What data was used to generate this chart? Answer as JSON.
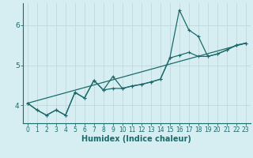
{
  "xlabel": "Humidex (Indice chaleur)",
  "bg_color": "#d6eef2",
  "grid_color": "#c0d8dc",
  "line_color": "#1a6b6b",
  "xlim": [
    -0.5,
    23.5
  ],
  "ylim": [
    3.55,
    6.55
  ],
  "yticks": [
    4,
    5,
    6
  ],
  "xticks": [
    0,
    1,
    2,
    3,
    4,
    5,
    6,
    7,
    8,
    9,
    10,
    11,
    12,
    13,
    14,
    15,
    16,
    17,
    18,
    19,
    20,
    21,
    22,
    23
  ],
  "line1_x": [
    0,
    1,
    2,
    3,
    4,
    5,
    6,
    7,
    8,
    9,
    10,
    11,
    12,
    13,
    14,
    15,
    16,
    17,
    18,
    19,
    20,
    21,
    22,
    23
  ],
  "line1_y": [
    4.05,
    3.88,
    3.75,
    3.88,
    3.75,
    4.32,
    4.18,
    4.62,
    4.38,
    4.72,
    4.42,
    4.48,
    4.52,
    4.58,
    4.65,
    5.18,
    6.38,
    5.88,
    5.72,
    5.22,
    5.28,
    5.38,
    5.5,
    5.55
  ],
  "line2_x": [
    0,
    1,
    2,
    3,
    4,
    5,
    6,
    7,
    8,
    9,
    10,
    11,
    12,
    13,
    14,
    15,
    16,
    17,
    18,
    19,
    20,
    21,
    22,
    23
  ],
  "line2_y": [
    4.05,
    3.88,
    3.75,
    3.88,
    3.75,
    4.32,
    4.18,
    4.62,
    4.38,
    4.42,
    4.42,
    4.48,
    4.52,
    4.58,
    4.65,
    5.18,
    5.25,
    5.32,
    5.22,
    5.22,
    5.28,
    5.38,
    5.5,
    5.55
  ],
  "trend_x": [
    0,
    23
  ],
  "trend_y": [
    4.05,
    5.55
  ],
  "line_width": 0.9
}
